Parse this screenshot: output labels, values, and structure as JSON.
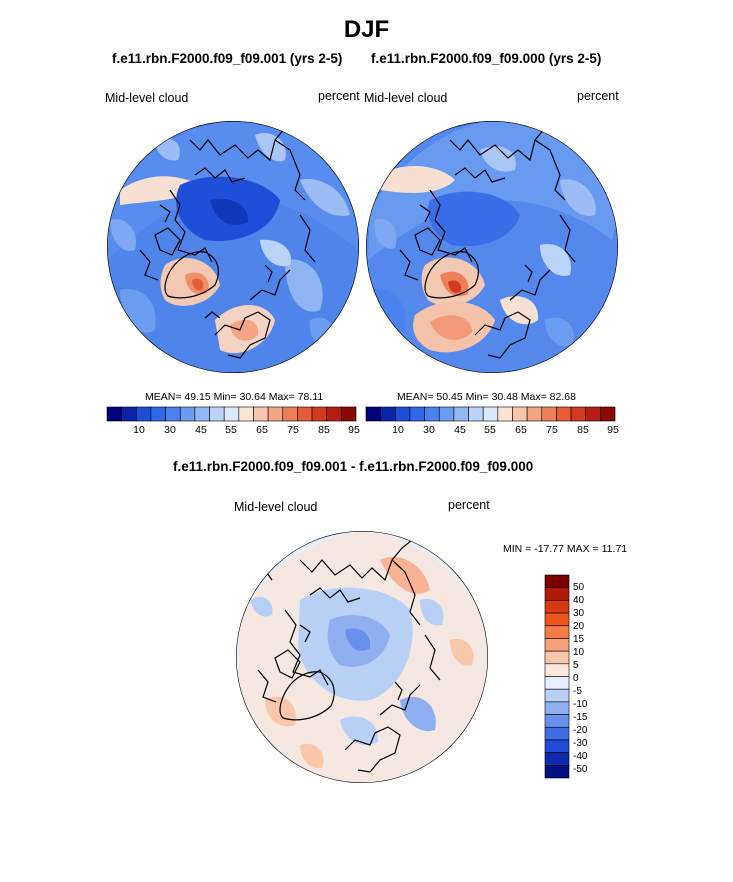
{
  "title": "DJF",
  "panels": [
    {
      "case_title": "f.e11.rbn.F2000.f09_f09.001 (yrs 2-5)",
      "left_label": "Mid-level cloud",
      "right_label": "percent",
      "stats": {
        "mean_label": "MEAN=",
        "mean": "49.15",
        "min_label": "Min=",
        "min": "30.64",
        "max_label": "Max=",
        "max": "78.11"
      }
    },
    {
      "case_title": "f.e11.rbn.F2000.f09_f09.000 (yrs 2-5)",
      "left_label": "Mid-level cloud",
      "right_label": "percent",
      "stats": {
        "mean_label": "MEAN=",
        "mean": "50.45",
        "min_label": "Min=",
        "min": "30.48",
        "max_label": "Max=",
        "max": "82.68"
      }
    }
  ],
  "colorbar": {
    "tick_labels": [
      "10",
      "30",
      "45",
      "55",
      "65",
      "75",
      "85",
      "95"
    ],
    "colors": [
      "#00007f",
      "#0a24a8",
      "#1c4fd6",
      "#2f68ea",
      "#4b82ef",
      "#6b9df1",
      "#92b8f4",
      "#bad3f7",
      "#dde9fa",
      "#fbe3d5",
      "#f7c6ad",
      "#f3a584",
      "#ee8059",
      "#e65c36",
      "#d43a1f",
      "#b51d10",
      "#8a0a05"
    ]
  },
  "difference": {
    "title": "f.e11.rbn.F2000.f09_f09.001 - f.e11.rbn.F2000.f09_f09.000",
    "left_label": "Mid-level cloud",
    "right_label": "percent",
    "minmax": "MIN = -17.77 MAX =  11.71",
    "colorbar": {
      "tick_labels": [
        "50",
        "40",
        "30",
        "20",
        "15",
        "10",
        "5",
        "0",
        "-5",
        "-10",
        "-15",
        "-20",
        "-30",
        "-40",
        "-50"
      ],
      "colors": [
        "#7d0000",
        "#b01a05",
        "#d83a12",
        "#f0551e",
        "#f87a45",
        "#f9a07a",
        "#fbc7ab",
        "#fde7dc",
        "#e6effb",
        "#b8cff6",
        "#8eb0f1",
        "#6791ec",
        "#3f6fe6",
        "#1f4bd6",
        "#0d2aae",
        "#020f80"
      ]
    }
  }
}
